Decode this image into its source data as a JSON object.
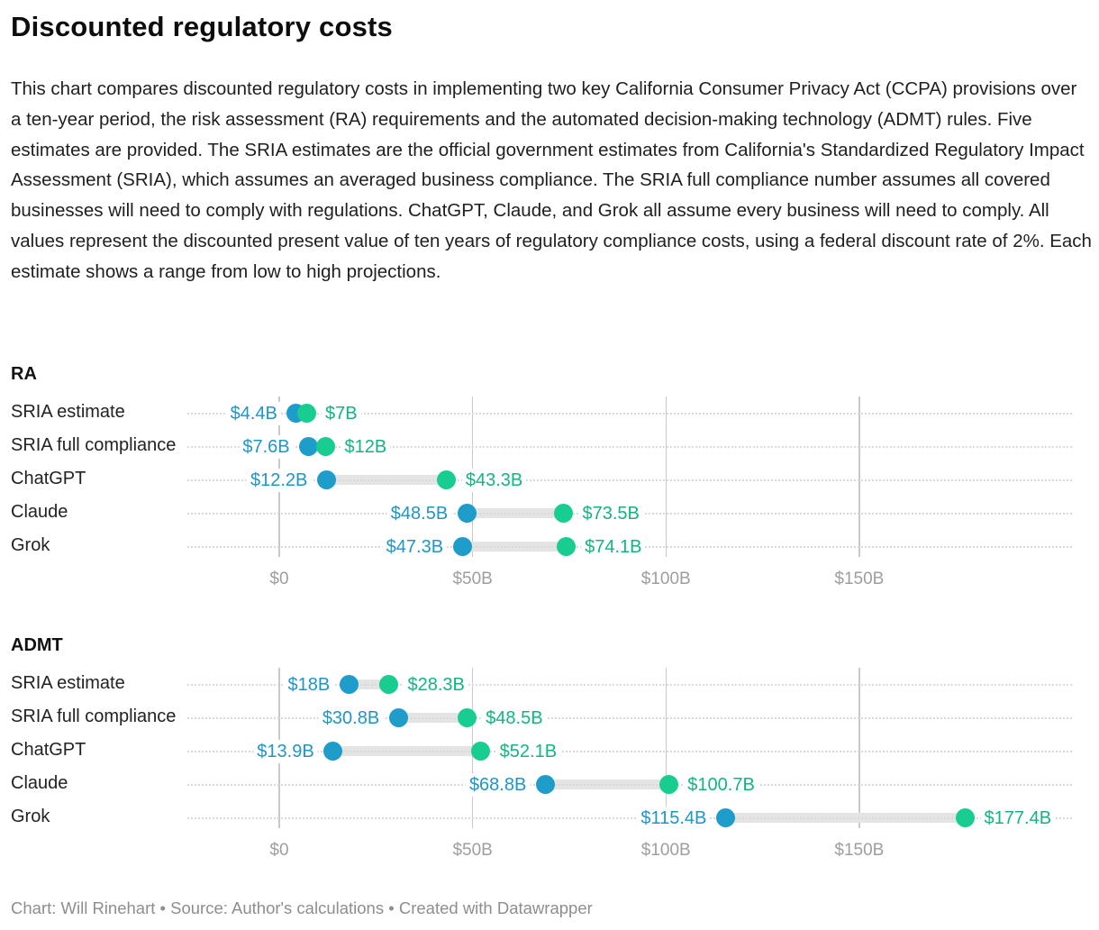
{
  "header": {
    "title": "Discounted regulatory costs",
    "description": "This chart compares discounted regulatory costs in implementing two key California Consumer Privacy Act (CCPA) provisions over a ten-year period, the risk assessment (RA) requirements and the automated decision-making technology (ADMT) rules. Five estimates are provided. The SRIA estimates are the official government estimates from California's Standardized Regulatory Impact Assessment (SRIA), which assumes an averaged business compliance. The SRIA full compliance number assumes all covered businesses will need to comply with regulations. ChatGPT, Claude, and Grok all assume every business will need to comply. All values represent the discounted present value of ten years of regulatory compliance costs, using a federal discount rate of 2%. Each estimate shows a range from low to high projections."
  },
  "colors": {
    "low_dot": "#1e9cca",
    "low_text": "#1e96c6",
    "high_dot": "#19cd90",
    "high_text": "#11b583",
    "bar": "#e4e4e4",
    "row_dotted": "#d9d9d9",
    "grid": "#c9c9c9",
    "axis_text": "#9e9e9e"
  },
  "chart_data": [
    {
      "type": "range",
      "group": "RA",
      "xlim": [
        0,
        205
      ],
      "legend_position": "none",
      "grid": "vertical-lines-and-dotted-row-leaders",
      "ticks": [
        {
          "value": 0,
          "label": "$0"
        },
        {
          "value": 50,
          "label": "$50B"
        },
        {
          "value": 100,
          "label": "$100B"
        },
        {
          "value": 150,
          "label": "$150B"
        }
      ],
      "rows": [
        {
          "label": "SRIA estimate",
          "low": 4.4,
          "high": 7,
          "low_label": "$4.4B",
          "high_label": "$7B"
        },
        {
          "label": "SRIA full compliance",
          "low": 7.6,
          "high": 12,
          "low_label": "$7.6B",
          "high_label": "$12B"
        },
        {
          "label": "ChatGPT",
          "low": 12.2,
          "high": 43.3,
          "low_label": "$12.2B",
          "high_label": "$43.3B"
        },
        {
          "label": "Claude",
          "low": 48.5,
          "high": 73.5,
          "low_label": "$48.5B",
          "high_label": "$73.5B"
        },
        {
          "label": "Grok",
          "low": 47.3,
          "high": 74.1,
          "low_label": "$47.3B",
          "high_label": "$74.1B"
        }
      ]
    },
    {
      "type": "range",
      "group": "ADMT",
      "xlim": [
        0,
        205
      ],
      "legend_position": "none",
      "grid": "vertical-lines-and-dotted-row-leaders",
      "ticks": [
        {
          "value": 0,
          "label": "$0"
        },
        {
          "value": 50,
          "label": "$50B"
        },
        {
          "value": 100,
          "label": "$100B"
        },
        {
          "value": 150,
          "label": "$150B"
        }
      ],
      "rows": [
        {
          "label": "SRIA estimate",
          "low": 18,
          "high": 28.3,
          "low_label": "$18B",
          "high_label": "$28.3B"
        },
        {
          "label": "SRIA full compliance",
          "low": 30.8,
          "high": 48.5,
          "low_label": "$30.8B",
          "high_label": "$48.5B"
        },
        {
          "label": "ChatGPT",
          "low": 13.9,
          "high": 52.1,
          "low_label": "$13.9B",
          "high_label": "$52.1B"
        },
        {
          "label": "Claude",
          "low": 68.8,
          "high": 100.7,
          "low_label": "$68.8B",
          "high_label": "$100.7B"
        },
        {
          "label": "Grok",
          "low": 115.4,
          "high": 177.4,
          "low_label": "$115.4B",
          "high_label": "$177.4B"
        }
      ]
    }
  ],
  "footer": {
    "text": "Chart: Will Rinehart • Source: Author's calculations • Created with Datawrapper"
  }
}
